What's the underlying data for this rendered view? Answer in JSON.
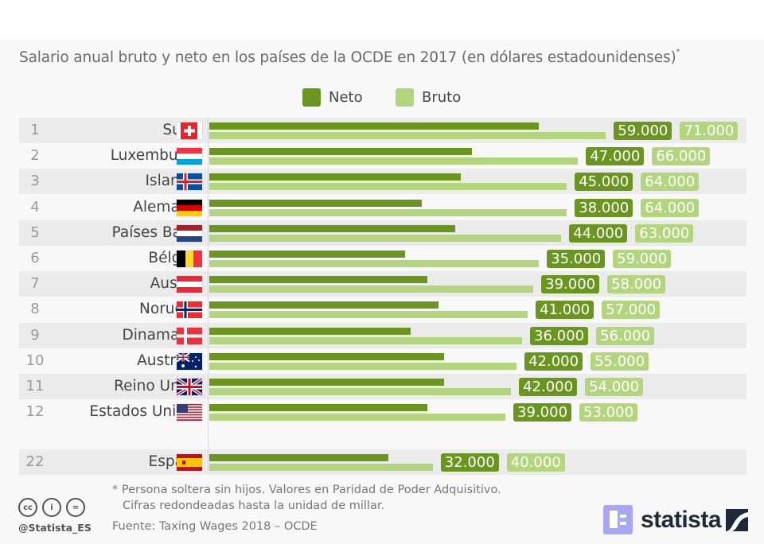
{
  "chart_data": {
    "type": "bar",
    "orientation": "horizontal",
    "title": "Salario anual bruto y neto en los países de la OCDE en 2017 (en dólares estadounidenses)",
    "title_marker": "*",
    "categories": [
      "Suiza",
      "Luxemburgo",
      "Islandia",
      "Alemania",
      "Países Bajos",
      "Bélgica",
      "Austria",
      "Noruega",
      "Dinamarca",
      "Australia",
      "Reino Unido",
      "Estados Unidos",
      "España"
    ],
    "ranks": [
      "1",
      "2",
      "3",
      "4",
      "5",
      "6",
      "7",
      "8",
      "9",
      "10",
      "11",
      "12",
      "22"
    ],
    "series": [
      {
        "name": "Neto",
        "color": "#6a961f",
        "values": [
          59000,
          47000,
          45000,
          38000,
          44000,
          35000,
          39000,
          41000,
          36000,
          42000,
          42000,
          39000,
          32000
        ],
        "labels": [
          "59.000",
          "47.000",
          "45.000",
          "38.000",
          "44.000",
          "35.000",
          "39.000",
          "41.000",
          "36.000",
          "42.000",
          "42.000",
          "39.000",
          "32.000"
        ]
      },
      {
        "name": "Bruto",
        "color": "#b3d57e",
        "values": [
          71000,
          66000,
          64000,
          64000,
          63000,
          59000,
          58000,
          57000,
          56000,
          55000,
          54000,
          53000,
          40000
        ],
        "labels": [
          "71.000",
          "66.000",
          "64.000",
          "64.000",
          "63.000",
          "59.000",
          "58.000",
          "57.000",
          "56.000",
          "55.000",
          "54.000",
          "53.000",
          "40.000"
        ]
      }
    ],
    "flags": [
      "switzerland-flag",
      "luxembourg-flag",
      "iceland-flag",
      "germany-flag",
      "netherlands-flag",
      "belgium-flag",
      "austria-flag",
      "norway-flag",
      "denmark-flag",
      "australia-flag",
      "united-kingdom-flag",
      "united-states-flag",
      "spain-flag"
    ],
    "xlim": [
      0,
      71000
    ],
    "grid": false,
    "legend": "top-center"
  },
  "footer": {
    "note_line1": "* Persona soltera sin hijos. Valores en Paridad de Poder Adquisitivo.",
    "note_line2": "Cifras redondeadas hasta la unidad de millar.",
    "source": "Fuente: Taxing Wages 2018 – OCDE",
    "handle": "@Statista_ES",
    "cc_icons": [
      "cc-icon",
      "by-icon",
      "nd-icon"
    ],
    "cc_glyphs": [
      "cc",
      "i",
      "="
    ],
    "logo_text": "statista"
  }
}
